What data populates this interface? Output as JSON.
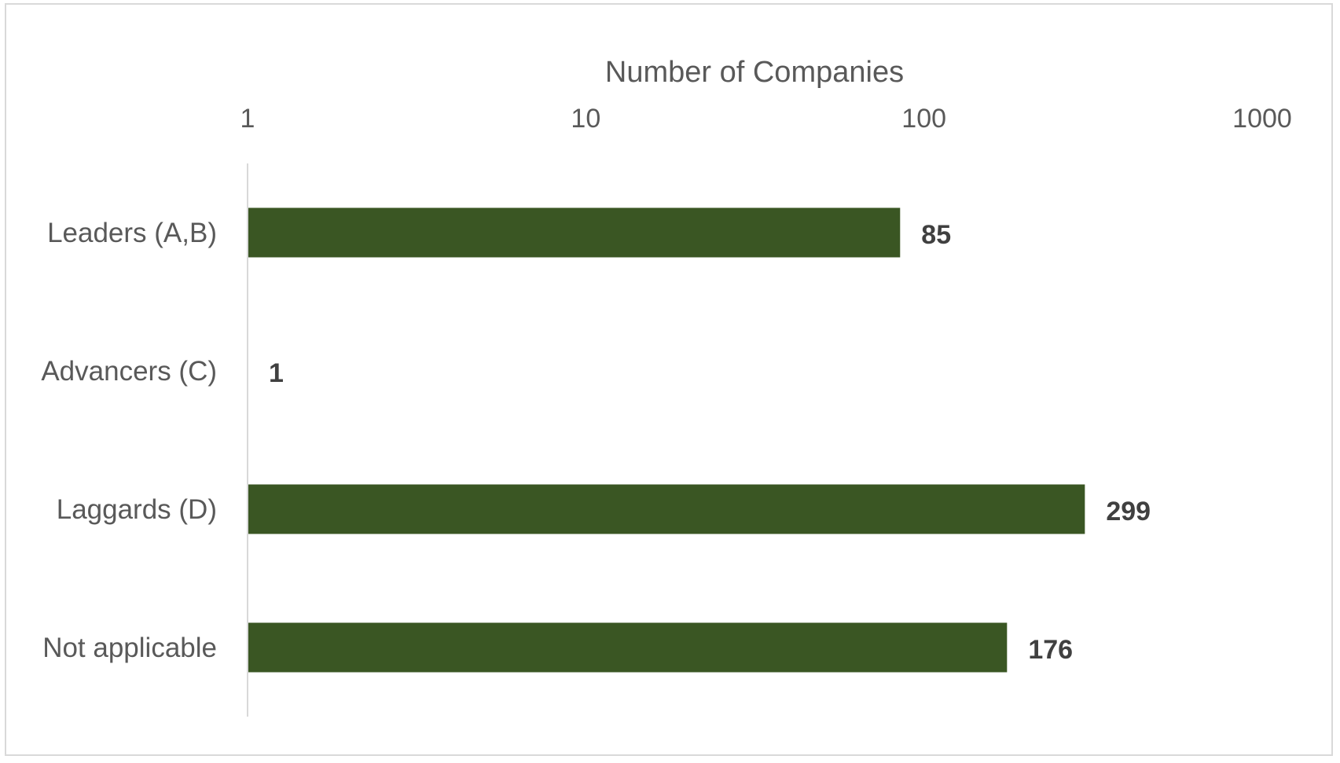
{
  "chart_data": {
    "type": "bar",
    "orientation": "horizontal",
    "xlabel": "Number of Companies",
    "x_scale": "log",
    "xlim": [
      1,
      1000
    ],
    "ticks": [
      "1",
      "10",
      "100",
      "1000"
    ],
    "tick_values": [
      1,
      10,
      100,
      1000
    ],
    "categories": [
      "Leaders (A,B)",
      "Advancers (C)",
      "Laggards (D)",
      "Not applicable"
    ],
    "values": [
      85,
      1,
      299,
      176
    ],
    "data_labels": [
      "85",
      "1",
      "299",
      "176"
    ],
    "bar_color": "#3a5623",
    "axis_position": "top",
    "grid": false,
    "legend": "none"
  }
}
